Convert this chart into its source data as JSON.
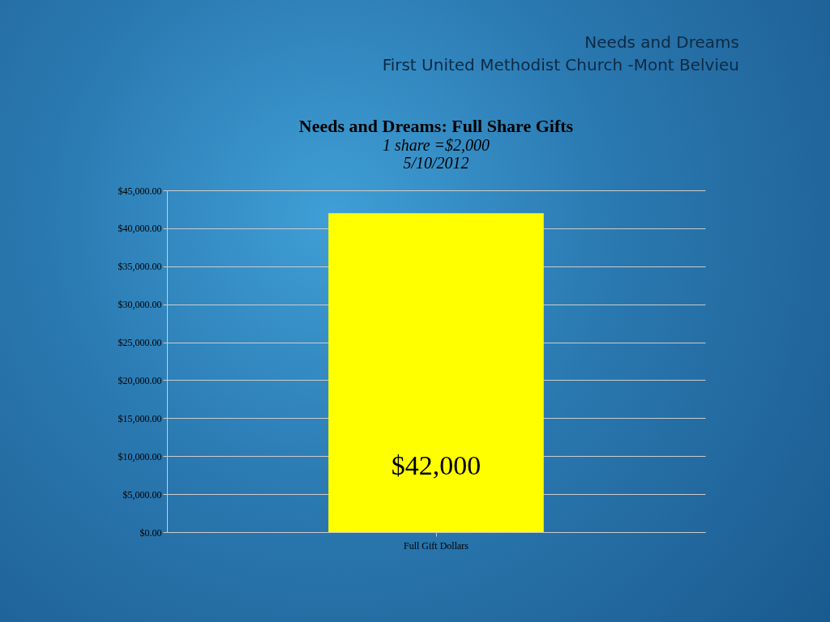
{
  "chart_data": {
    "type": "bar",
    "title": "Needs and Dreams: Full Share Gifts",
    "subtitle": "1 share =$2,000",
    "annotations": [
      "5/10/2012",
      "Needs and Dreams",
      "First United Methodist Church -Mont Belvieu"
    ],
    "categories": [
      "Full Gift Dollars"
    ],
    "values": [
      42000
    ],
    "color": "#ffff00",
    "value_labels": [
      "$42,000"
    ],
    "ylim": [
      0,
      45000
    ],
    "yticks": [
      {
        "value": 0,
        "label": "$0.00"
      },
      {
        "value": 5000,
        "label": "$5,000.00"
      },
      {
        "value": 10000,
        "label": "$10,000.00"
      },
      {
        "value": 15000,
        "label": "$15,000.00"
      },
      {
        "value": 20000,
        "label": "$20,000.00"
      },
      {
        "value": 25000,
        "label": "$25,000.00"
      },
      {
        "value": 30000,
        "label": "$30,000.00"
      },
      {
        "value": 35000,
        "label": "$35,000.00"
      },
      {
        "value": 40000,
        "label": "$40,000.00"
      },
      {
        "value": 45000,
        "label": "$45,000.00"
      }
    ],
    "grid": "y"
  }
}
